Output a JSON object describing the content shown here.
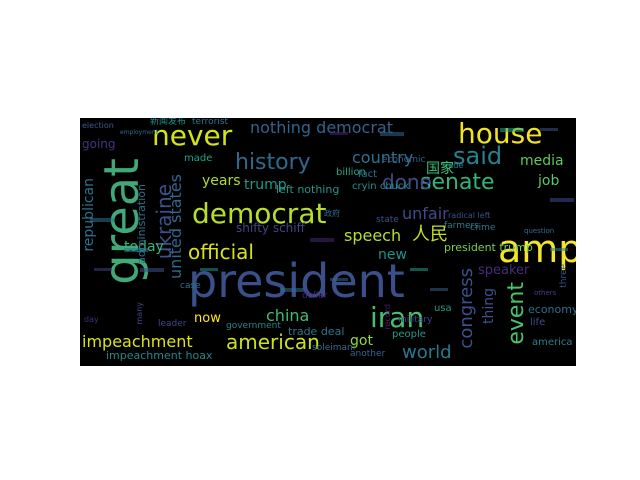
{
  "words": [
    {
      "text": "president",
      "color": "#3b4f8a"
    },
    {
      "text": "great",
      "color": "#41a87a"
    },
    {
      "text": "democrat",
      "color": "#b6de2b"
    },
    {
      "text": "amp",
      "color": "#f3e52a"
    },
    {
      "text": "house",
      "color": "#f2e51d"
    },
    {
      "text": "never",
      "color": "#d2e21b"
    },
    {
      "text": "history",
      "color": "#30698e"
    },
    {
      "text": "official",
      "color": "#d8e219"
    },
    {
      "text": "iran",
      "color": "#46c06f"
    },
    {
      "text": "american",
      "color": "#cde11d"
    },
    {
      "text": "senate",
      "color": "#31b57b"
    },
    {
      "text": "ukraine",
      "color": "#3a528b"
    },
    {
      "text": "united states",
      "color": "#31688e"
    },
    {
      "text": "said",
      "color": "#26828e"
    },
    {
      "text": "done",
      "color": "#3e4c8a"
    },
    {
      "text": "congress",
      "color": "#3b518b"
    },
    {
      "text": "event",
      "color": "#4ac16d"
    },
    {
      "text": "impeachment",
      "color": "#dde318"
    },
    {
      "text": "country",
      "color": "#2c738e"
    },
    {
      "text": "nothing democrat",
      "color": "#33638d"
    },
    {
      "text": "china",
      "color": "#3fbc73"
    },
    {
      "text": "world",
      "color": "#29798e"
    },
    {
      "text": "speech",
      "color": "#b5de2b"
    },
    {
      "text": "unfair",
      "color": "#3f4a8a"
    },
    {
      "text": "today",
      "color": "#35b779"
    },
    {
      "text": "media",
      "color": "#5ec962"
    },
    {
      "text": "republican",
      "color": "#2c728e"
    },
    {
      "text": "trump",
      "color": "#1f9a8a"
    },
    {
      "text": "years",
      "color": "#addc30"
    },
    {
      "text": "going",
      "color": "#46327e"
    },
    {
      "text": "job",
      "color": "#5dc863"
    },
    {
      "text": "speaker",
      "color": "#472d7b"
    },
    {
      "text": "thing",
      "color": "#3b528b"
    },
    {
      "text": "new",
      "color": "#1f948c"
    },
    {
      "text": "now",
      "color": "#fde725"
    },
    {
      "text": "got",
      "color": "#90d743"
    },
    {
      "text": "shifty schiff",
      "color": "#414487"
    },
    {
      "text": "impeachment hoax",
      "color": "#24878e"
    },
    {
      "text": "left nothing",
      "color": "#1f988b"
    },
    {
      "text": "trade deal",
      "color": "#2a788e"
    },
    {
      "text": "administration",
      "color": "#2d708e"
    },
    {
      "text": "president trump",
      "color": "#7ad151"
    },
    {
      "text": "cryin chuck",
      "color": "#21918c"
    },
    {
      "text": "billion",
      "color": "#22a884"
    },
    {
      "text": "economic",
      "color": "#355f8d"
    },
    {
      "text": "terrorist",
      "color": "#2a788e"
    },
    {
      "text": "made",
      "color": "#20a486"
    },
    {
      "text": "state",
      "color": "#3b528b"
    },
    {
      "text": "farmers",
      "color": "#287c8e"
    },
    {
      "text": "usa",
      "color": "#1f9e89"
    },
    {
      "text": "fact",
      "color": "#2c728e"
    },
    {
      "text": "people",
      "color": "#1e9b8a"
    },
    {
      "text": "crime",
      "color": "#2b748e"
    },
    {
      "text": "economy",
      "color": "#2d718e"
    },
    {
      "text": "dollar",
      "color": "#482576"
    },
    {
      "text": "military",
      "color": "#3e4989"
    },
    {
      "text": "government",
      "color": "#25858e"
    },
    {
      "text": "leader",
      "color": "#3f4889"
    },
    {
      "text": "soleimani",
      "color": "#2e6e8e"
    },
    {
      "text": "another",
      "color": "#31678e"
    },
    {
      "text": "life",
      "color": "#3d4e8a"
    },
    {
      "text": "america",
      "color": "#27808e"
    },
    {
      "text": "case",
      "color": "#2a778e"
    },
    {
      "text": "many",
      "color": "#404688"
    },
    {
      "text": "election",
      "color": "#355e8d"
    },
    {
      "text": "record",
      "color": "#482173"
    },
    {
      "text": "trade",
      "color": "#26818e"
    },
    {
      "text": "radical left",
      "color": "#3c508b"
    },
    {
      "text": "others",
      "color": "#433e85"
    },
    {
      "text": "question",
      "color": "#2f6c8e"
    },
    {
      "text": "three",
      "color": "#3b528b"
    },
    {
      "text": "day",
      "color": "#46307e"
    },
    {
      "text": "employment",
      "color": "#2e6f8e"
    },
    {
      "text": "国家",
      "color": "#3fbc73"
    },
    {
      "text": "人民",
      "color": "#c2df23"
    },
    {
      "text": "政府",
      "color": "#31688e"
    },
    {
      "text": "新闻发布",
      "color": "#21918c"
    }
  ]
}
